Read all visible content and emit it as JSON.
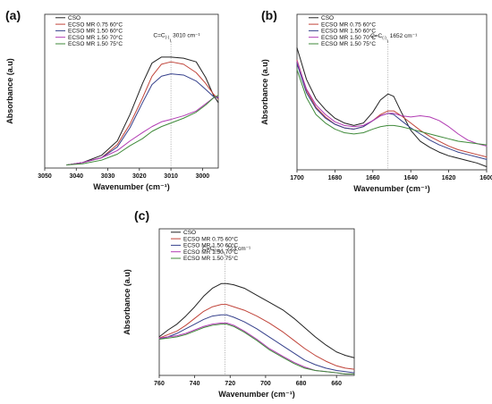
{
  "colors": {
    "CSO": "#222222",
    "ECSO MR 0.75 60°C": "#c0443a",
    "ECSO MR 1.50 60°C": "#36418c",
    "ECSO MR 1.50 70°C": "#b13bb3",
    "ECSO MR 1.50 75°C": "#3f8a3a"
  },
  "chart_data": [
    {
      "id": "a",
      "type": "line",
      "panel_label": "(a)",
      "xlabel": "Wavenumber (cm⁻¹)",
      "ylabel": "Absorbance (a.u)",
      "xlim": [
        3050,
        2995
      ],
      "x_reversed": true,
      "xticks": [
        3050,
        3040,
        3030,
        3020,
        3010,
        3000
      ],
      "y_ticks_shown": false,
      "legend_position": "top-left",
      "annotation": {
        "text_main": "C=C",
        "text_sub": "(-)",
        "text_value": "3010 cm⁻¹",
        "x": 3010
      },
      "series": [
        {
          "name": "CSO",
          "x": [
            3043,
            3038,
            3032,
            3027,
            3023,
            3019,
            3016,
            3013,
            3010,
            3006,
            3002,
            2999,
            2996.5,
            2995
          ],
          "y": [
            0.0,
            0.02,
            0.08,
            0.2,
            0.42,
            0.68,
            0.85,
            0.9,
            0.9,
            0.89,
            0.86,
            0.73,
            0.58,
            0.52
          ]
        },
        {
          "name": "ECSO MR 0.75 60°C",
          "x": [
            3043,
            3038,
            3032,
            3027,
            3023,
            3019,
            3016,
            3013,
            3010,
            3006,
            3002,
            2999,
            2996.5,
            2995
          ],
          "y": [
            0.0,
            0.02,
            0.06,
            0.17,
            0.34,
            0.56,
            0.74,
            0.84,
            0.86,
            0.84,
            0.77,
            0.68,
            0.59,
            0.55
          ]
        },
        {
          "name": "ECSO MR 1.50 60°C",
          "x": [
            3043,
            3038,
            3032,
            3027,
            3023,
            3019,
            3016,
            3013,
            3010,
            3006,
            3002,
            2999,
            2996.5,
            2995
          ],
          "y": [
            0.0,
            0.02,
            0.06,
            0.15,
            0.31,
            0.52,
            0.67,
            0.74,
            0.76,
            0.75,
            0.7,
            0.63,
            0.57,
            0.56
          ]
        },
        {
          "name": "ECSO MR 1.50 70°C",
          "x": [
            3043,
            3038,
            3032,
            3027,
            3023,
            3019,
            3016,
            3013,
            3010,
            3006,
            3002,
            2999,
            2996.5,
            2995
          ],
          "y": [
            0.0,
            0.02,
            0.06,
            0.12,
            0.2,
            0.27,
            0.32,
            0.36,
            0.38,
            0.41,
            0.45,
            0.51,
            0.56,
            0.57
          ]
        },
        {
          "name": "ECSO MR 1.50 75°C",
          "x": [
            3043,
            3038,
            3032,
            3027,
            3023,
            3019,
            3016,
            3013,
            3010,
            3006,
            3002,
            2999,
            2996.5,
            2995
          ],
          "y": [
            0.0,
            0.01,
            0.04,
            0.09,
            0.16,
            0.22,
            0.28,
            0.32,
            0.35,
            0.39,
            0.44,
            0.5,
            0.56,
            0.58
          ]
        }
      ]
    },
    {
      "id": "b",
      "type": "line",
      "panel_label": "(b)",
      "xlabel": "Wavenumber (cm⁻¹)",
      "ylabel": "Absorbance (a.u)",
      "xlim": [
        1700,
        1600
      ],
      "x_reversed": true,
      "xticks": [
        1700,
        1680,
        1660,
        1640,
        1620,
        1600
      ],
      "y_ticks_shown": false,
      "legend_position": "top-left",
      "annotation": {
        "text_main": "C=C",
        "text_sub": "(-)",
        "text_value": "1652 cm⁻¹",
        "x": 1652
      },
      "series": [
        {
          "name": "CSO",
          "x": [
            1700,
            1695,
            1690,
            1685,
            1680,
            1675,
            1670,
            1665,
            1660,
            1656,
            1652,
            1649,
            1645,
            1640,
            1635,
            1630,
            1625,
            1620,
            1615,
            1610,
            1605,
            1600
          ],
          "y": [
            0.98,
            0.72,
            0.56,
            0.47,
            0.4,
            0.36,
            0.34,
            0.36,
            0.45,
            0.55,
            0.6,
            0.58,
            0.45,
            0.3,
            0.21,
            0.16,
            0.12,
            0.09,
            0.07,
            0.05,
            0.03,
            0.0
          ]
        },
        {
          "name": "ECSO MR 0.75 60°C",
          "x": [
            1700,
            1695,
            1690,
            1685,
            1680,
            1675,
            1670,
            1665,
            1660,
            1656,
            1652,
            1649,
            1645,
            1640,
            1635,
            1630,
            1625,
            1620,
            1615,
            1610,
            1605,
            1600
          ],
          "y": [
            0.88,
            0.63,
            0.49,
            0.41,
            0.35,
            0.32,
            0.31,
            0.33,
            0.38,
            0.43,
            0.46,
            0.46,
            0.42,
            0.36,
            0.3,
            0.25,
            0.21,
            0.17,
            0.14,
            0.12,
            0.1,
            0.08
          ]
        },
        {
          "name": "ECSO MR 1.50 60°C",
          "x": [
            1700,
            1695,
            1690,
            1685,
            1680,
            1675,
            1670,
            1665,
            1660,
            1656,
            1652,
            1649,
            1645,
            1640,
            1635,
            1630,
            1625,
            1620,
            1615,
            1610,
            1605,
            1600
          ],
          "y": [
            0.85,
            0.61,
            0.48,
            0.4,
            0.35,
            0.32,
            0.31,
            0.33,
            0.38,
            0.42,
            0.44,
            0.43,
            0.38,
            0.32,
            0.27,
            0.22,
            0.18,
            0.15,
            0.12,
            0.1,
            0.08,
            0.06
          ]
        },
        {
          "name": "ECSO MR 1.50 70°C",
          "x": [
            1700,
            1695,
            1690,
            1685,
            1680,
            1675,
            1670,
            1665,
            1660,
            1656,
            1652,
            1649,
            1645,
            1640,
            1635,
            1630,
            1625,
            1620,
            1615,
            1610,
            1605,
            1600
          ],
          "y": [
            0.87,
            0.64,
            0.51,
            0.43,
            0.37,
            0.34,
            0.33,
            0.34,
            0.38,
            0.42,
            0.44,
            0.44,
            0.42,
            0.41,
            0.42,
            0.41,
            0.38,
            0.33,
            0.27,
            0.22,
            0.19,
            0.17
          ]
        },
        {
          "name": "ECSO MR 1.50 75°C",
          "x": [
            1700,
            1695,
            1690,
            1685,
            1680,
            1675,
            1670,
            1665,
            1660,
            1656,
            1652,
            1649,
            1645,
            1640,
            1635,
            1630,
            1625,
            1620,
            1615,
            1610,
            1605,
            1600
          ],
          "y": [
            0.8,
            0.57,
            0.43,
            0.36,
            0.31,
            0.28,
            0.27,
            0.28,
            0.31,
            0.33,
            0.34,
            0.34,
            0.33,
            0.31,
            0.29,
            0.27,
            0.25,
            0.23,
            0.21,
            0.2,
            0.19,
            0.18
          ]
        }
      ]
    },
    {
      "id": "c",
      "type": "line",
      "panel_label": "(c)",
      "xlabel": "Wavenumber (cm⁻¹)",
      "ylabel": "Absorbance (a.u)",
      "xlim": [
        760,
        650
      ],
      "x_reversed": true,
      "xticks": [
        760,
        740,
        720,
        700,
        680,
        660
      ],
      "y_ticks_shown": false,
      "legend_position": "top-left",
      "annotation": {
        "text_main": "C=C",
        "text_sub": "(cis-)",
        "text_value": "723 cm⁻¹",
        "x": 723
      },
      "series": [
        {
          "name": "CSO",
          "x": [
            760,
            755,
            750,
            745,
            740,
            735,
            730,
            725,
            722,
            718,
            712,
            705,
            698,
            690,
            684,
            678,
            672,
            666,
            660,
            655,
            650
          ],
          "y": [
            0.32,
            0.38,
            0.43,
            0.5,
            0.58,
            0.67,
            0.74,
            0.78,
            0.78,
            0.77,
            0.74,
            0.68,
            0.62,
            0.55,
            0.48,
            0.4,
            0.32,
            0.25,
            0.19,
            0.16,
            0.14
          ]
        },
        {
          "name": "ECSO MR 0.75 60°C",
          "x": [
            760,
            755,
            750,
            745,
            740,
            735,
            730,
            725,
            722,
            718,
            712,
            705,
            698,
            690,
            684,
            678,
            672,
            666,
            660,
            655,
            650
          ],
          "y": [
            0.31,
            0.34,
            0.37,
            0.42,
            0.48,
            0.54,
            0.58,
            0.6,
            0.6,
            0.58,
            0.55,
            0.5,
            0.44,
            0.36,
            0.29,
            0.22,
            0.16,
            0.11,
            0.07,
            0.05,
            0.04
          ]
        },
        {
          "name": "ECSO MR 1.50 60°C",
          "x": [
            760,
            755,
            750,
            745,
            740,
            735,
            730,
            725,
            722,
            718,
            712,
            705,
            698,
            690,
            684,
            678,
            672,
            666,
            660,
            655,
            650
          ],
          "y": [
            0.3,
            0.32,
            0.35,
            0.39,
            0.43,
            0.47,
            0.5,
            0.51,
            0.51,
            0.49,
            0.45,
            0.39,
            0.32,
            0.24,
            0.18,
            0.12,
            0.08,
            0.05,
            0.03,
            0.02,
            0.01
          ]
        },
        {
          "name": "ECSO MR 1.50 70°C",
          "x": [
            760,
            755,
            750,
            745,
            740,
            735,
            730,
            725,
            722,
            718,
            712,
            705,
            698,
            690,
            684,
            678,
            672,
            666,
            660,
            655,
            650
          ],
          "y": [
            0.31,
            0.32,
            0.33,
            0.35,
            0.38,
            0.41,
            0.43,
            0.44,
            0.44,
            0.42,
            0.37,
            0.3,
            0.22,
            0.15,
            0.1,
            0.06,
            0.03,
            0.02,
            0.01,
            0.0,
            0.0
          ]
        },
        {
          "name": "ECSO MR 1.50 75°C",
          "x": [
            760,
            755,
            750,
            745,
            740,
            735,
            730,
            725,
            722,
            718,
            712,
            705,
            698,
            690,
            684,
            678,
            672,
            666,
            660,
            655,
            650
          ],
          "y": [
            0.3,
            0.31,
            0.32,
            0.34,
            0.37,
            0.4,
            0.42,
            0.43,
            0.43,
            0.41,
            0.36,
            0.29,
            0.21,
            0.14,
            0.09,
            0.05,
            0.03,
            0.02,
            0.01,
            0.0,
            0.0
          ]
        }
      ]
    }
  ]
}
